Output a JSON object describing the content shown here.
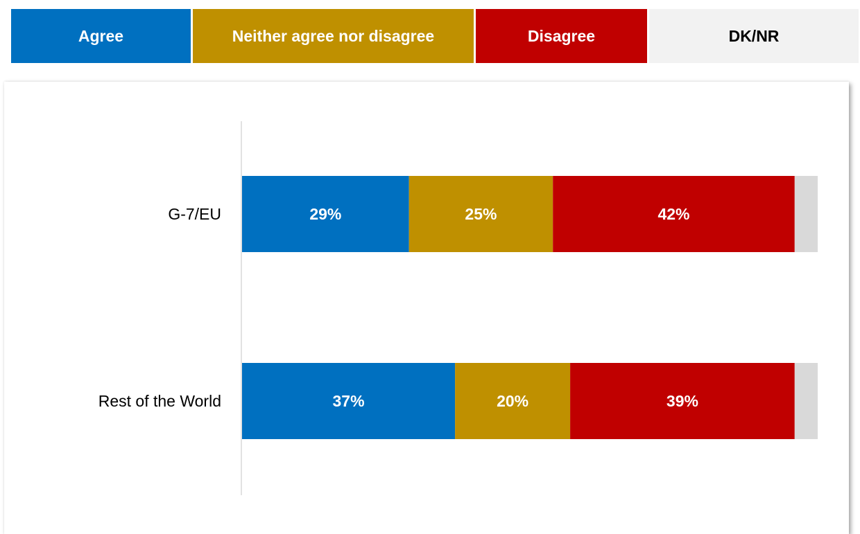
{
  "legend": [
    {
      "label": "Agree",
      "color": "#0070c0",
      "text_color": "#ffffff"
    },
    {
      "label": "Neither agree nor disagree",
      "color": "#bf9000",
      "text_color": "#ffffff"
    },
    {
      "label": "Disagree",
      "color": "#c00000",
      "text_color": "#ffffff"
    },
    {
      "label": "DK/NR",
      "color": "#f2f2f2",
      "text_color": "#000000"
    }
  ],
  "chart_data": {
    "type": "bar",
    "orientation": "horizontal",
    "stacked": true,
    "categories": [
      "G-7/EU",
      "Rest of the World"
    ],
    "series": [
      {
        "name": "Agree",
        "values": [
          29,
          37
        ],
        "labels": [
          "29%",
          "37%"
        ],
        "color": "#0070c0"
      },
      {
        "name": "Neither agree nor disagree",
        "values": [
          25,
          20
        ],
        "labels": [
          "25%",
          "20%"
        ],
        "color": "#bf9000"
      },
      {
        "name": "Disagree",
        "values": [
          42,
          39
        ],
        "labels": [
          "42%",
          "39%"
        ],
        "color": "#c00000"
      },
      {
        "name": "DK/NR",
        "values": [
          4,
          4
        ],
        "labels": [
          "",
          ""
        ],
        "color": "#d9d9d9"
      }
    ],
    "xlim": [
      0,
      100
    ],
    "legend_position": "top",
    "grid": false
  }
}
